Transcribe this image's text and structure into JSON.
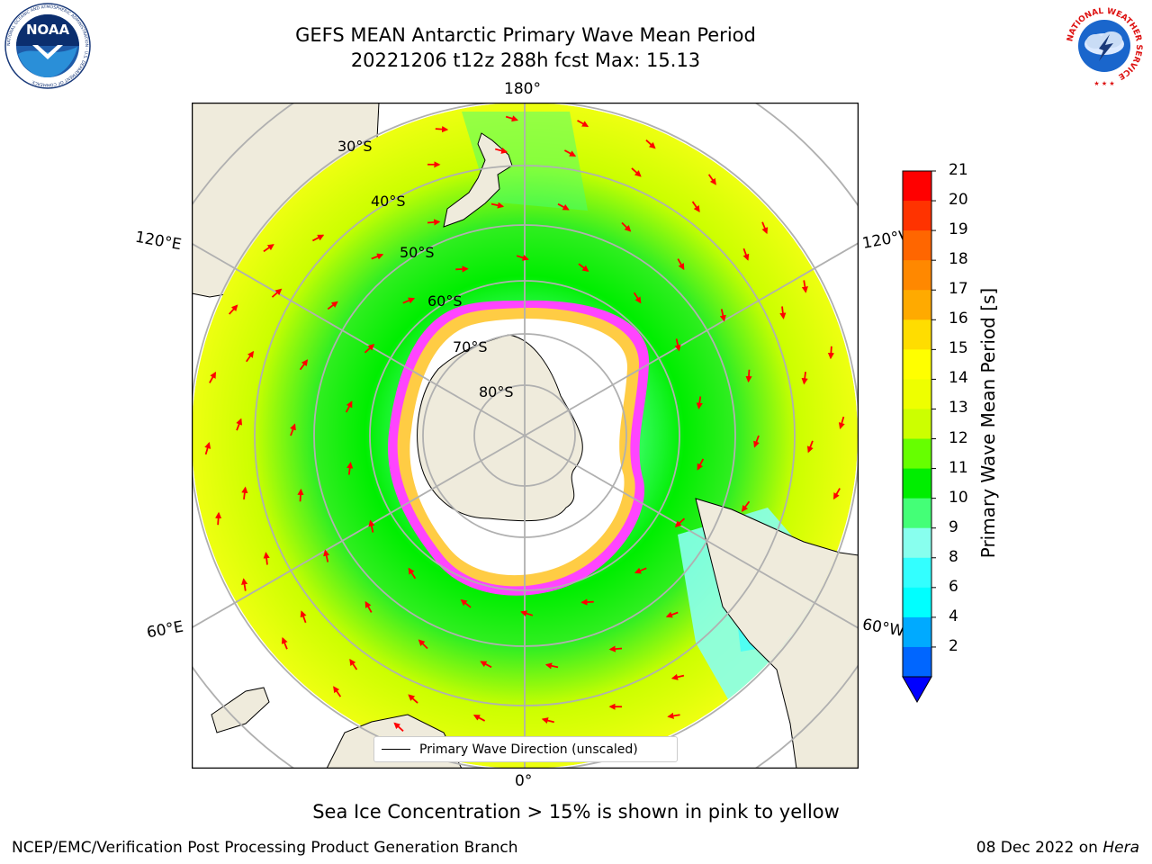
{
  "header": {
    "title_line1": "GEFS MEAN Antarctic Primary Wave Mean Period",
    "title_line2": "20221206 t12z 288h fcst   Max: 15.13"
  },
  "logos": {
    "noaa_text": "NOAA",
    "noaa_ring": "NATIONAL OCEANIC AND ATMOSPHERIC ADMINISTRATION · U.S. DEPARTMENT OF COMMERCE",
    "nws_ring": "NATIONAL WEATHER SERVICE"
  },
  "map": {
    "projection": "south-polar-stereographic",
    "longitude_labels": {
      "top": "180°",
      "bottom": "0°",
      "left_upper": "120°E",
      "left_lower": "60°E",
      "right_upper": "120°W",
      "right_lower": "60°W"
    },
    "latitude_labels": [
      "30°S",
      "40°S",
      "50°S",
      "60°S",
      "70°S",
      "80°S"
    ],
    "legend_entry": "Primary Wave Direction (unscaled)",
    "colors": {
      "land": "#efebdc",
      "sea_ice_low": "#ff33ff",
      "sea_ice_high": "#ffcc44",
      "arrow": "#ff0000",
      "graticule": "#b0b0b0"
    }
  },
  "colorbar": {
    "label": "Primary Wave Mean Period [s]",
    "ticks": [
      "21",
      "20",
      "19",
      "18",
      "17",
      "16",
      "15",
      "14",
      "13",
      "12",
      "11",
      "10",
      "9",
      "8",
      "6",
      "4",
      "2"
    ],
    "colors": [
      "#ff0000",
      "#ff3300",
      "#ff6600",
      "#ff8800",
      "#ffaa00",
      "#ffdd00",
      "#ffff00",
      "#eeff00",
      "#ccff00",
      "#66ff00",
      "#00ee00",
      "#44ff77",
      "#88ffee",
      "#33ffff",
      "#00ffff",
      "#00aaff",
      "#0066ff"
    ],
    "extend_color": "#0000ff"
  },
  "footer": {
    "subtitle": "Sea Ice Concentration > 15% is shown in pink to yellow",
    "left": "NCEP/EMC/Verification Post Processing Product Generation Branch",
    "right_prefix": "08 Dec 2022 on ",
    "right_host": "Hera"
  }
}
